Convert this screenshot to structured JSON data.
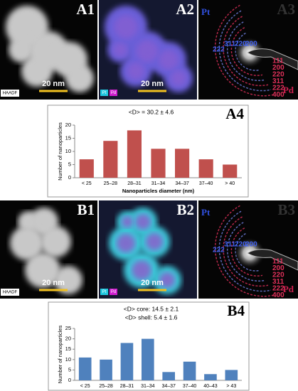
{
  "panels": [
    {
      "label": "A1",
      "scale": "20 nm",
      "detector": "HAADF"
    },
    {
      "label": "A2",
      "scale": "20 nm",
      "legend": [
        "Pt",
        "Pd"
      ]
    },
    {
      "label": "A3",
      "elements": [
        "Pt",
        "Pd"
      ],
      "pt_rings": [
        "311",
        "220",
        "200",
        "222"
      ],
      "pd_rings": [
        "111",
        "200",
        "220",
        "311",
        "222",
        "400"
      ]
    },
    {
      "label": "B1",
      "scale": "20 nm",
      "detector": "HAADF"
    },
    {
      "label": "B2",
      "scale": "20 nm",
      "legend": [
        "Pt",
        "Pd"
      ]
    },
    {
      "label": "B3",
      "elements": [
        "Pt",
        "Pd"
      ],
      "pt_rings": [
        "311",
        "220",
        "200",
        "222"
      ],
      "pd_rings": [
        "111",
        "200",
        "220",
        "311",
        "222",
        "400"
      ]
    }
  ],
  "chart_data": [
    {
      "type": "bar",
      "panel": "A4",
      "title": [
        "<D> = 30.2 ± 4.6"
      ],
      "categories": [
        "< 25",
        "25–28",
        "28–31",
        "31–34",
        "34–37",
        "37–40",
        "> 40"
      ],
      "values": [
        7,
        14,
        18,
        11,
        11,
        7,
        5
      ],
      "color": "#c0504d",
      "ylabel": "Number of nanoparticles",
      "xlabel": "Nanoparticles diameter (nm)",
      "ylim": [
        0,
        20
      ],
      "yticks": [
        0,
        5,
        10,
        15,
        20
      ],
      "grid": false
    },
    {
      "type": "bar",
      "panel": "B4",
      "title": [
        "<D> core: 14.5 ± 2.1",
        "<D> shell: 5.4 ± 1.6"
      ],
      "categories": [
        "< 25",
        "25–28",
        "28–31",
        "31–34",
        "34–37",
        "37–40",
        "40–43",
        "> 43"
      ],
      "values": [
        11,
        10,
        18,
        20,
        4,
        9,
        3,
        5
      ],
      "color": "#4f81bd",
      "ylabel": "Number of nanoparticles",
      "ylim": [
        0,
        25
      ],
      "yticks": [
        0,
        5,
        10,
        15,
        20,
        25
      ],
      "grid": false
    }
  ]
}
